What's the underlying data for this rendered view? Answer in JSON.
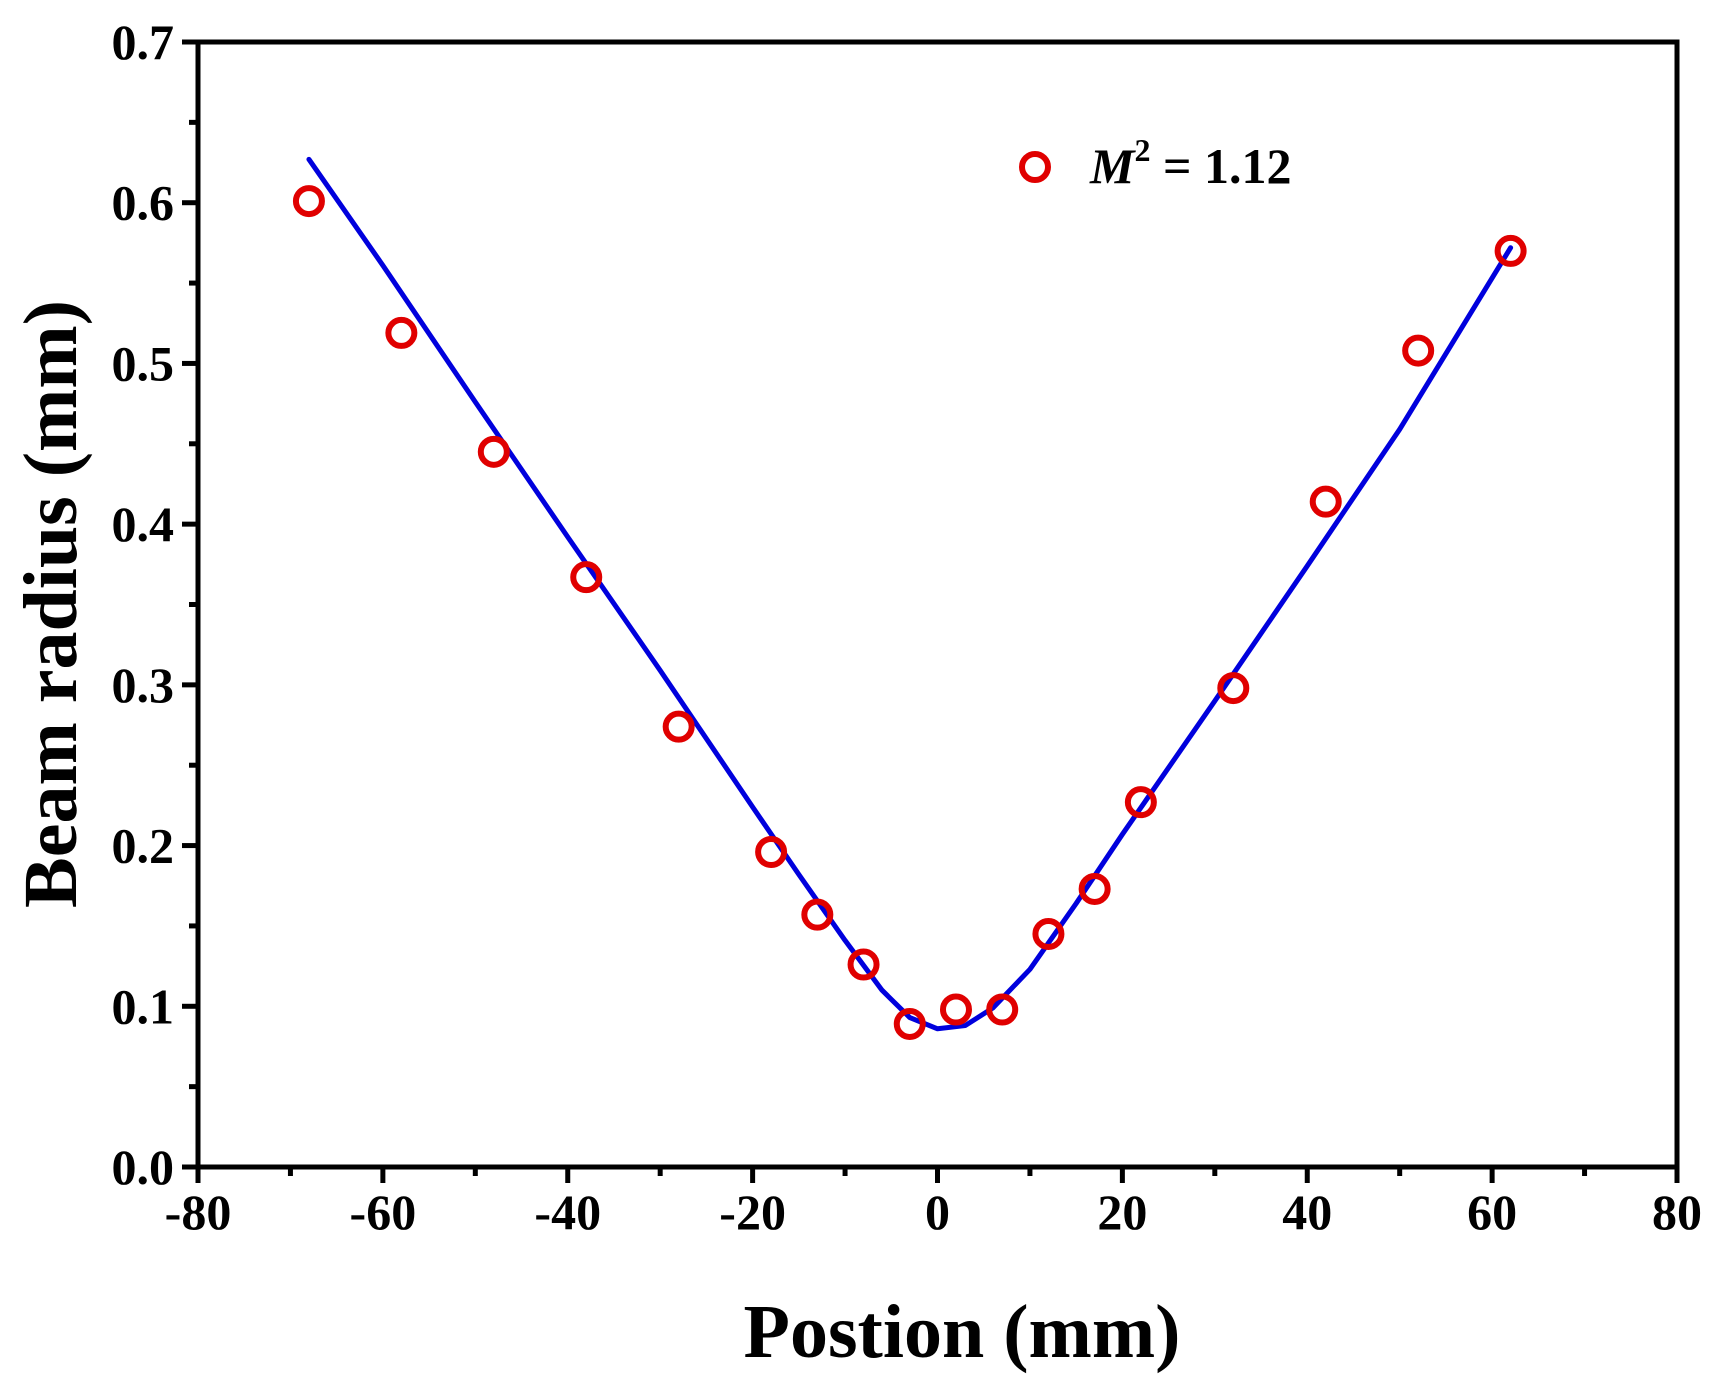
{
  "chart_data": {
    "type": "scatter",
    "title": "",
    "xlabel": "Postion (mm)",
    "ylabel": "Beam radius (mm)",
    "xlim": [
      -80,
      80
    ],
    "ylim": [
      0.0,
      0.7
    ],
    "x_ticks": [
      -80,
      -60,
      -40,
      -20,
      0,
      20,
      40,
      60,
      80
    ],
    "x_tick_labels": [
      "-80",
      "-60",
      "-40",
      "-20",
      "0",
      "20",
      "40",
      "60",
      "80"
    ],
    "y_ticks": [
      0.0,
      0.1,
      0.2,
      0.3,
      0.4,
      0.5,
      0.6,
      0.7
    ],
    "y_tick_labels": [
      "0.0",
      "0.1",
      "0.2",
      "0.3",
      "0.4",
      "0.5",
      "0.6",
      "0.7"
    ],
    "grid": false,
    "legend_position": "top-right",
    "legend": {
      "symbol_label": "M",
      "superscript": "2",
      "rest": " = 1.12"
    },
    "series": [
      {
        "kind": "markers",
        "marker": "open-circle",
        "color": "#e00000",
        "x": [
          -68,
          -58,
          -48,
          -38,
          -28,
          -18,
          -13,
          -8,
          -3,
          2,
          7,
          12,
          17,
          22,
          32,
          42,
          52,
          62
        ],
        "y": [
          0.601,
          0.519,
          0.445,
          0.367,
          0.274,
          0.196,
          0.157,
          0.126,
          0.089,
          0.098,
          0.098,
          0.145,
          0.173,
          0.227,
          0.298,
          0.414,
          0.508,
          0.57
        ]
      },
      {
        "kind": "fit-line",
        "color": "#0000dd",
        "x": [
          -68,
          -60,
          -50,
          -40,
          -30,
          -20,
          -15,
          -10,
          -6,
          -3,
          0,
          3,
          6,
          10,
          15,
          20,
          30,
          40,
          50,
          62
        ],
        "y": [
          0.627,
          0.561,
          0.476,
          0.392,
          0.309,
          0.224,
          0.182,
          0.141,
          0.11,
          0.093,
          0.086,
          0.088,
          0.099,
          0.123,
          0.164,
          0.207,
          0.29,
          0.374,
          0.459,
          0.572
        ]
      }
    ]
  }
}
